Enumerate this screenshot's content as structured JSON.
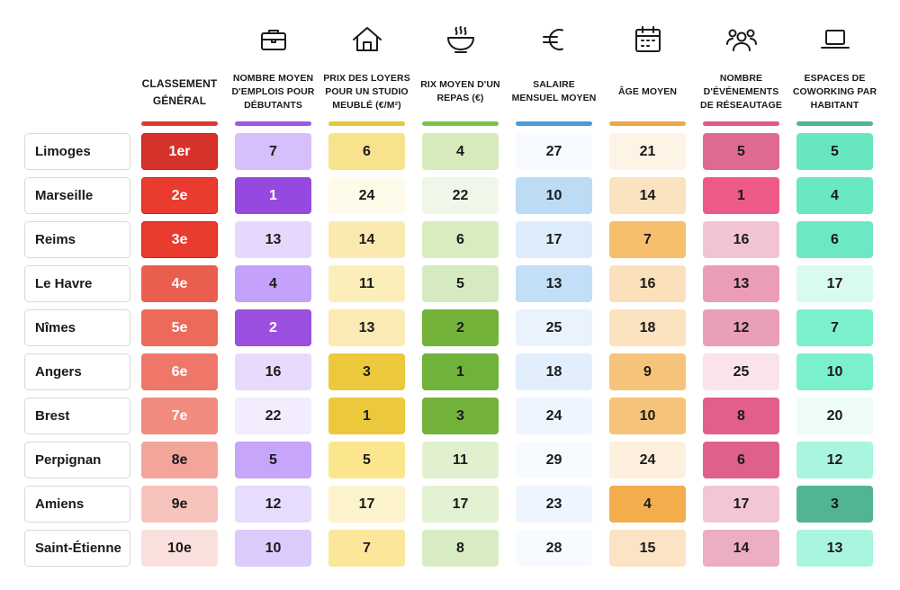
{
  "chart_data": {
    "type": "table",
    "columns": [
      {
        "key": "rank",
        "label": "CLASSEMENT GÉNÉRAL",
        "icon": "",
        "bar_color": "#dd3a2e"
      },
      {
        "key": "jobs",
        "label": "NOMBRE MOYEN D'EMPLOIS POUR DÉBUTANTS",
        "icon": "briefcase-icon",
        "bar_color": "#9c59e0"
      },
      {
        "key": "rent",
        "label": "PRIX DES LOYERS POUR UN STUDIO MEUBLÉ (€/M²)",
        "icon": "house-icon",
        "bar_color": "#e8c53f"
      },
      {
        "key": "meal",
        "label": "RIX MOYEN D'UN REPAS (€)",
        "icon": "bowl-icon",
        "bar_color": "#7cbf4a"
      },
      {
        "key": "salary",
        "label": "SALAIRE MENSUEL MOYEN",
        "icon": "euro-icon",
        "bar_color": "#4a9ad9"
      },
      {
        "key": "age",
        "label": "ÂGE MOYEN",
        "icon": "calendar-icon",
        "bar_color": "#eea84a"
      },
      {
        "key": "events",
        "label": "NOMBRE D'ÉVÉNEMENTS DE RÉSEAUTAGE",
        "icon": "people-icon",
        "bar_color": "#df5a8a"
      },
      {
        "key": "coworking",
        "label": "ESPACES DE COWORKING PAR HABITANT",
        "icon": "laptop-icon",
        "bar_color": "#4fb59a"
      }
    ],
    "rows": [
      {
        "city": "Limoges",
        "values": [
          "1er",
          "7",
          "6",
          "4",
          "27",
          "21",
          "5",
          "5"
        ]
      },
      {
        "city": "Marseille",
        "values": [
          "2e",
          "1",
          "24",
          "22",
          "10",
          "14",
          "1",
          "4"
        ]
      },
      {
        "city": "Reims",
        "values": [
          "3e",
          "13",
          "14",
          "6",
          "17",
          "7",
          "16",
          "6"
        ]
      },
      {
        "city": "Le Havre",
        "values": [
          "4e",
          "4",
          "11",
          "5",
          "13",
          "16",
          "13",
          "17"
        ]
      },
      {
        "city": "Nîmes",
        "values": [
          "5e",
          "2",
          "13",
          "2",
          "25",
          "18",
          "12",
          "7"
        ]
      },
      {
        "city": "Angers",
        "values": [
          "6e",
          "16",
          "3",
          "1",
          "18",
          "9",
          "25",
          "10"
        ]
      },
      {
        "city": "Brest",
        "values": [
          "7e",
          "22",
          "1",
          "3",
          "24",
          "10",
          "8",
          "20"
        ]
      },
      {
        "city": "Perpignan",
        "values": [
          "8e",
          "5",
          "5",
          "11",
          "29",
          "24",
          "6",
          "12"
        ]
      },
      {
        "city": "Amiens",
        "values": [
          "9e",
          "12",
          "17",
          "17",
          "23",
          "4",
          "17",
          "3"
        ]
      },
      {
        "city": "Saint-Étienne",
        "values": [
          "10e",
          "10",
          "7",
          "8",
          "28",
          "15",
          "14",
          "13"
        ]
      }
    ],
    "cell_colors": [
      [
        "#d7322a",
        "#d6bffa",
        "#f8e28e",
        "#d6eabc",
        "#f7fbff",
        "#fdf4e6",
        "#df6a90",
        "#68e6c0"
      ],
      [
        "#ea3b2f",
        "#9649de",
        "#fffbea",
        "#f0f7e8",
        "#bcdcf6",
        "#fbe2c0",
        "#ee5a88",
        "#6ae8c2"
      ],
      [
        "#ea3b2f",
        "#e6d8fc",
        "#fbeab0",
        "#d8ecc0",
        "#ddecfb",
        "#f5bf6e",
        "#f2c3d4",
        "#6de8c4"
      ],
      [
        "#ea5e4e",
        "#c4a1fb",
        "#fbeebb",
        "#d5eac0",
        "#c3dff7",
        "#fbe0bc",
        "#eb9db7",
        "#d9faf0"
      ],
      [
        "#ec6a5a",
        "#9b4fdf",
        "#fbeab4",
        "#74b33a",
        "#eaf3fd",
        "#fbe3c0",
        "#ea9fb8",
        "#7bf0cd"
      ],
      [
        "#ee7769",
        "#e7dafc",
        "#ecc93c",
        "#6fb23c",
        "#e2eefc",
        "#f5c47a",
        "#fbe3ec",
        "#7bf0cd"
      ],
      [
        "#f08b7e",
        "#f3ecfe",
        "#ecc93c",
        "#73b33c",
        "#eef5fe",
        "#f5c47a",
        "#e15f88",
        "#edfcf7"
      ],
      [
        "#f3a59a",
        "#c6a5fb",
        "#fbe68e",
        "#e1f1cf",
        "#f7fbff",
        "#fdf0de",
        "#e0608c",
        "#aaf5df"
      ],
      [
        "#f7c4bd",
        "#e8dcfc",
        "#fdf3cc",
        "#e4f2d4",
        "#eef5fe",
        "#f3ad4d",
        "#f2c6d6",
        "#53b395"
      ],
      [
        "#fae0dc",
        "#dccbfb",
        "#fbe69a",
        "#d8ecc4",
        "#f7fbff",
        "#fbe3c4",
        "#ebaec4",
        "#aaf5df"
      ]
    ],
    "text_colors": [
      [
        "#ffffff",
        "#1a1a1a",
        "#1a1a1a",
        "#1a1a1a",
        "#1a1a1a",
        "#1a1a1a",
        "#1a1a1a",
        "#1a1a1a"
      ],
      [
        "#ffffff",
        "#ffffff",
        "#1a1a1a",
        "#1a1a1a",
        "#1a1a1a",
        "#1a1a1a",
        "#1a1a1a",
        "#1a1a1a"
      ],
      [
        "#ffffff",
        "#1a1a1a",
        "#1a1a1a",
        "#1a1a1a",
        "#1a1a1a",
        "#1a1a1a",
        "#1a1a1a",
        "#1a1a1a"
      ],
      [
        "#ffffff",
        "#1a1a1a",
        "#1a1a1a",
        "#1a1a1a",
        "#1a1a1a",
        "#1a1a1a",
        "#1a1a1a",
        "#1a1a1a"
      ],
      [
        "#ffffff",
        "#ffffff",
        "#1a1a1a",
        "#1a1a1a",
        "#1a1a1a",
        "#1a1a1a",
        "#1a1a1a",
        "#1a1a1a"
      ],
      [
        "#ffffff",
        "#1a1a1a",
        "#1a1a1a",
        "#1a1a1a",
        "#1a1a1a",
        "#1a1a1a",
        "#1a1a1a",
        "#1a1a1a"
      ],
      [
        "#ffffff",
        "#1a1a1a",
        "#1a1a1a",
        "#1a1a1a",
        "#1a1a1a",
        "#1a1a1a",
        "#1a1a1a",
        "#1a1a1a"
      ],
      [
        "#1a1a1a",
        "#1a1a1a",
        "#1a1a1a",
        "#1a1a1a",
        "#1a1a1a",
        "#1a1a1a",
        "#1a1a1a",
        "#1a1a1a"
      ],
      [
        "#1a1a1a",
        "#1a1a1a",
        "#1a1a1a",
        "#1a1a1a",
        "#1a1a1a",
        "#1a1a1a",
        "#1a1a1a",
        "#1a1a1a"
      ],
      [
        "#1a1a1a",
        "#1a1a1a",
        "#1a1a1a",
        "#1a1a1a",
        "#1a1a1a",
        "#1a1a1a",
        "#1a1a1a",
        "#1a1a1a"
      ]
    ]
  }
}
